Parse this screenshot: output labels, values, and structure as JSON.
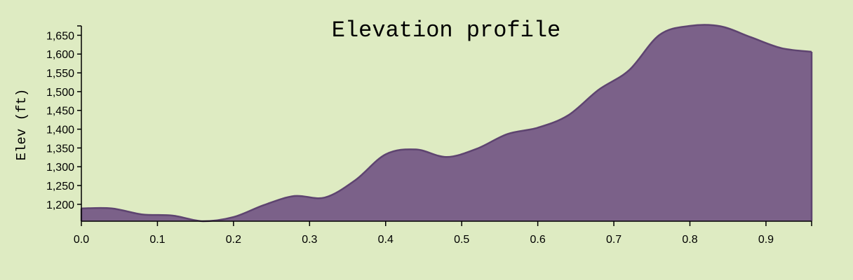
{
  "chart_data": {
    "type": "area",
    "title": "Elevation profile",
    "xlabel": "",
    "ylabel": "Elev (ft)",
    "xlim": [
      0,
      0.96
    ],
    "ylim": [
      1155,
      1675
    ],
    "grid": false,
    "fill_color": "#7b6189",
    "line_color": "#5e4470",
    "background": "#deebc2",
    "x_ticks": [
      0.0,
      0.1,
      0.2,
      0.3,
      0.4,
      0.5,
      0.6,
      0.7,
      0.8,
      0.9
    ],
    "x_tick_labels": [
      "0.0",
      "0.1",
      "0.2",
      "0.3",
      "0.4",
      "0.5",
      "0.6",
      "0.7",
      "0.8",
      "0.9"
    ],
    "y_ticks": [
      1200,
      1250,
      1300,
      1350,
      1400,
      1450,
      1500,
      1550,
      1600,
      1650
    ],
    "y_tick_labels": [
      "1,200",
      "1,250",
      "1,300",
      "1,350",
      "1,400",
      "1,450",
      "1,500",
      "1,550",
      "1,600",
      "1,650"
    ],
    "x": [
      0.0,
      0.04,
      0.08,
      0.12,
      0.16,
      0.2,
      0.24,
      0.28,
      0.32,
      0.36,
      0.4,
      0.44,
      0.48,
      0.52,
      0.56,
      0.6,
      0.64,
      0.68,
      0.72,
      0.76,
      0.8,
      0.84,
      0.88,
      0.92,
      0.96
    ],
    "y": [
      1189,
      1189,
      1173,
      1170,
      1155,
      1166,
      1198,
      1222,
      1218,
      1264,
      1333,
      1346,
      1326,
      1348,
      1387,
      1404,
      1437,
      1505,
      1557,
      1651,
      1675,
      1674,
      1645,
      1616,
      1606
    ]
  }
}
